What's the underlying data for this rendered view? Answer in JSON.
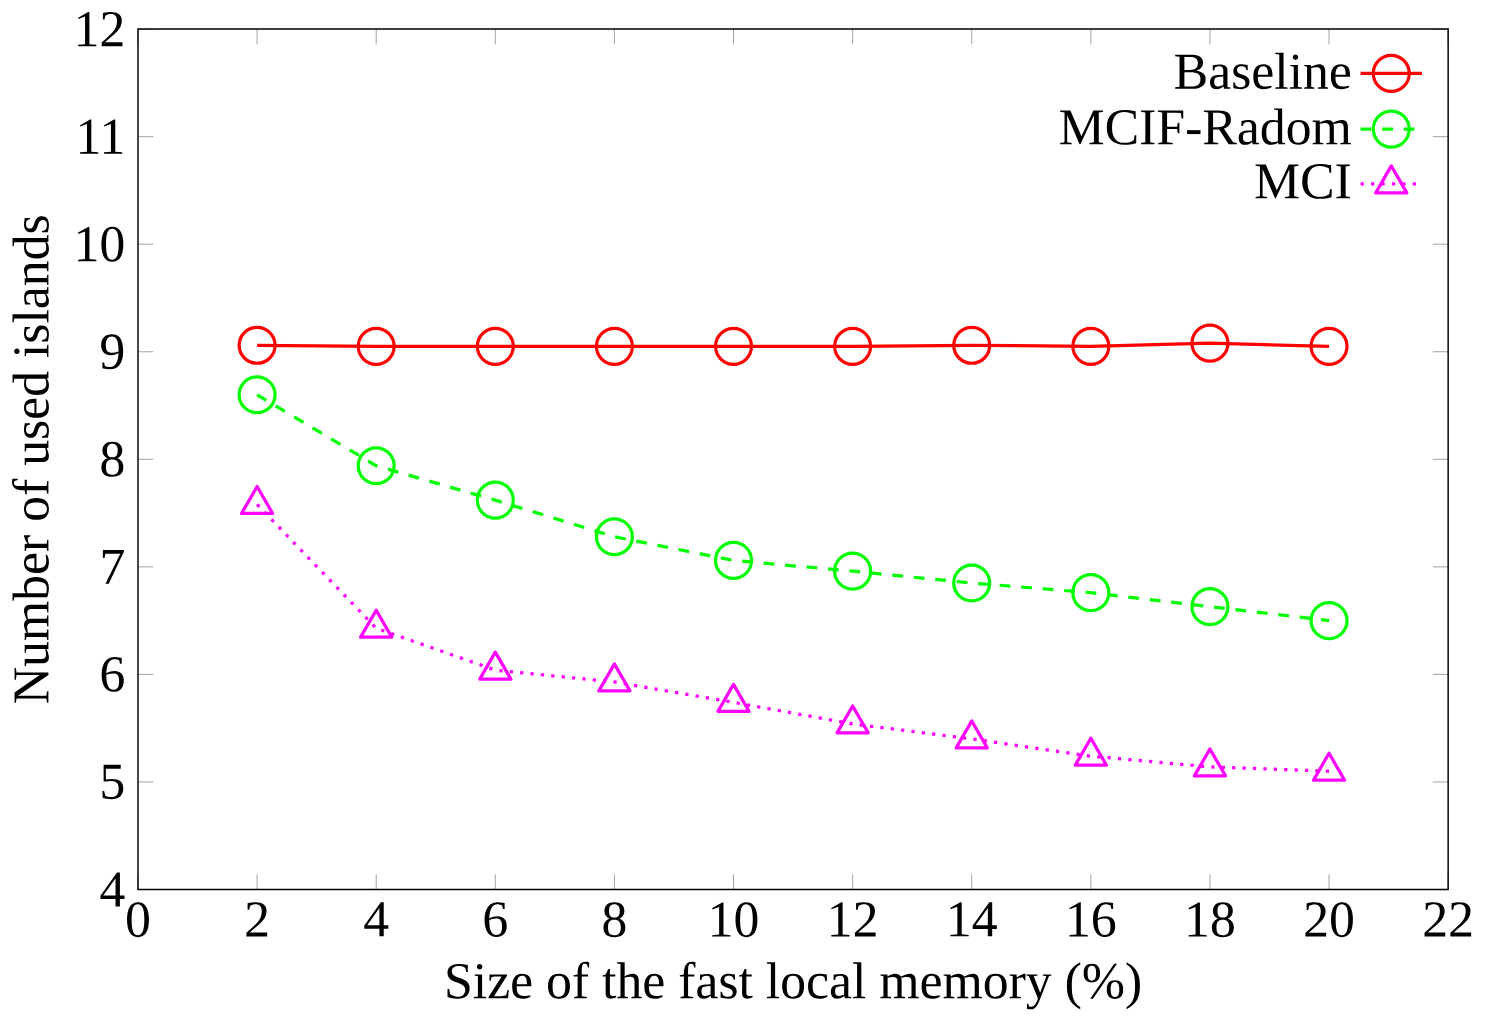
{
  "chart_data": {
    "type": "line",
    "xlabel": "Size of the fast local memory (%)",
    "ylabel": "Number of used islands",
    "x": [
      2,
      4,
      6,
      8,
      10,
      12,
      14,
      16,
      18,
      20
    ],
    "series": [
      {
        "name": "Baseline",
        "color": "#ff0000",
        "marker": "circle",
        "line_style": "solid",
        "values": [
          9.06,
          9.05,
          9.05,
          9.05,
          9.05,
          9.05,
          9.06,
          9.05,
          9.08,
          9.05
        ]
      },
      {
        "name": "MCIF-Radom",
        "color": "#00ff00",
        "marker": "circle",
        "line_style": "dashed",
        "values": [
          8.6,
          7.94,
          7.62,
          7.28,
          7.06,
          6.96,
          6.85,
          6.76,
          6.63,
          6.5
        ]
      },
      {
        "name": "MCI",
        "color": "#ff00ff",
        "marker": "triangle",
        "line_style": "dotted",
        "values": [
          7.58,
          6.43,
          6.04,
          5.93,
          5.74,
          5.54,
          5.4,
          5.24,
          5.14,
          5.1
        ]
      }
    ],
    "xlim": [
      0,
      22
    ],
    "xticks": [
      0,
      2,
      4,
      6,
      8,
      10,
      12,
      14,
      16,
      18,
      20,
      22
    ],
    "ylim": [
      4,
      12
    ],
    "yticks": [
      4,
      5,
      6,
      7,
      8,
      9,
      10,
      11,
      12
    ],
    "grid": false,
    "legend": "top right"
  }
}
